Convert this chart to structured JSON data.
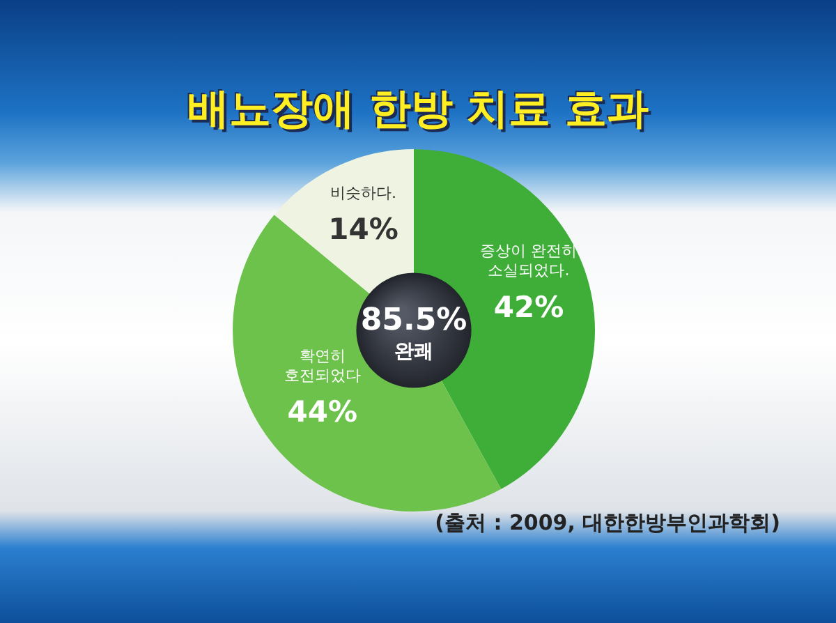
{
  "chart_data": {
    "type": "donut",
    "title": "배뇨장애 한방 치료 효과",
    "categories": [
      "증상이 완전히\n소실되었다.",
      "확연히\n호전되었다",
      "비슷하다."
    ],
    "values": [
      42,
      44,
      14
    ],
    "colors": [
      "#3fae38",
      "#6cc24a",
      "#eef3e2"
    ],
    "value_labels": [
      "42%",
      "44%",
      "14%"
    ],
    "annotations": [
      "85.5%",
      "완쾌",
      "(출처 : 2009, 대한한방부인과학회)"
    ],
    "legend": false
  }
}
